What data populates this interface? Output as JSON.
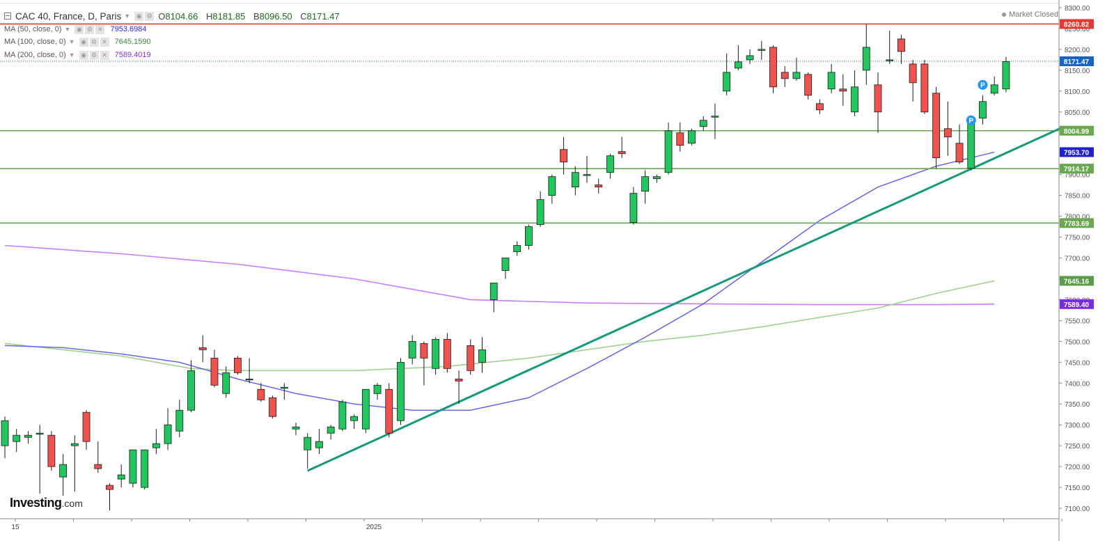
{
  "header": {
    "symbol_title": "CAC 40, France, D, Paris",
    "ohlc": [
      {
        "label": "O",
        "value": "8104.66"
      },
      {
        "label": "H",
        "value": "8181.85"
      },
      {
        "label": "B",
        "value": "8096.50"
      },
      {
        "label": "C",
        "value": "8171.47"
      }
    ],
    "market_status": "Market Closed"
  },
  "indicators": [
    {
      "label": "MA (50, close, 0)",
      "value": "7953.6984",
      "color": "#2b2bd8"
    },
    {
      "label": "MA (100, close, 0)",
      "value": "7645.1590",
      "color": "#3d8b3d"
    },
    {
      "label": "MA (200, close, 0)",
      "value": "7589.4019",
      "color": "#8a2be2"
    }
  ],
  "logo": {
    "main": "Investing",
    "suffix": ".com"
  },
  "colors": {
    "up": "#22c55e",
    "down": "#ef5350",
    "ma50": "#5b5bea",
    "ma100": "#9fd08f",
    "ma200": "#c77dff",
    "trend": "#129a7b",
    "support": "#6aa84f",
    "resistance": "#e53935",
    "last": "#1565c0"
  },
  "chart_data": {
    "type": "candlestick",
    "x_ticks": [
      "15",
      "2025"
    ],
    "y_axis": {
      "ticks": [
        7100,
        7150,
        7200,
        7250,
        7300,
        7350,
        7400,
        7450,
        7500,
        7550,
        7600,
        7650,
        7700,
        7750,
        7800,
        7850,
        7900,
        7950,
        8000,
        8050,
        8100,
        8150,
        8200,
        8250,
        8300
      ],
      "range": [
        7075,
        8310
      ]
    },
    "price_labels": [
      {
        "value": 8260.82,
        "text": "8260.82",
        "kind": "resistance"
      },
      {
        "value": 8171.47,
        "text": "8171.47",
        "kind": "last"
      },
      {
        "value": 8004.99,
        "text": "8004.99",
        "kind": "support"
      },
      {
        "value": 7953.7,
        "text": "7953.70",
        "kind": "ma50"
      },
      {
        "value": 7914.17,
        "text": "7914.17",
        "kind": "support"
      },
      {
        "value": 7783.69,
        "text": "7783.69",
        "kind": "support"
      },
      {
        "value": 7645.16,
        "text": "7645.16",
        "kind": "ma100"
      },
      {
        "value": 7589.4,
        "text": "7589.40",
        "kind": "ma200"
      }
    ],
    "horizontal_lines": [
      {
        "value": 8260.82,
        "kind": "resistance"
      },
      {
        "value": 8004.99,
        "kind": "support"
      },
      {
        "value": 7914.17,
        "kind": "support"
      },
      {
        "value": 7783.69,
        "kind": "support"
      }
    ],
    "trendline": [
      {
        "bar": 26,
        "value": 7190
      },
      {
        "bar": 91,
        "value": 8015
      }
    ],
    "p_markers": [
      {
        "bar": 83,
        "value": 8030
      },
      {
        "bar": 84,
        "value": 8115
      }
    ],
    "candles": [
      {
        "o": 7250,
        "h": 7320,
        "l": 7220,
        "c": 7310
      },
      {
        "o": 7260,
        "h": 7290,
        "l": 7235,
        "c": 7275
      },
      {
        "o": 7270,
        "h": 7285,
        "l": 7255,
        "c": 7275
      },
      {
        "o": 7280,
        "h": 7300,
        "l": 7135,
        "c": 7280
      },
      {
        "o": 7275,
        "h": 7285,
        "l": 7190,
        "c": 7200
      },
      {
        "o": 7175,
        "h": 7230,
        "l": 7130,
        "c": 7205
      },
      {
        "o": 7250,
        "h": 7275,
        "l": 7140,
        "c": 7255
      },
      {
        "o": 7330,
        "h": 7335,
        "l": 7240,
        "c": 7260
      },
      {
        "o": 7205,
        "h": 7260,
        "l": 7185,
        "c": 7195
      },
      {
        "o": 7155,
        "h": 7160,
        "l": 7095,
        "c": 7145
      },
      {
        "o": 7170,
        "h": 7205,
        "l": 7150,
        "c": 7180
      },
      {
        "o": 7160,
        "h": 7240,
        "l": 7150,
        "c": 7240
      },
      {
        "o": 7150,
        "h": 7240,
        "l": 7145,
        "c": 7240
      },
      {
        "o": 7245,
        "h": 7290,
        "l": 7230,
        "c": 7255
      },
      {
        "o": 7255,
        "h": 7340,
        "l": 7240,
        "c": 7300
      },
      {
        "o": 7285,
        "h": 7360,
        "l": 7270,
        "c": 7335
      },
      {
        "o": 7335,
        "h": 7455,
        "l": 7330,
        "c": 7430
      },
      {
        "o": 7485,
        "h": 7515,
        "l": 7450,
        "c": 7480
      },
      {
        "o": 7460,
        "h": 7480,
        "l": 7390,
        "c": 7395
      },
      {
        "o": 7375,
        "h": 7440,
        "l": 7365,
        "c": 7425
      },
      {
        "o": 7460,
        "h": 7465,
        "l": 7420,
        "c": 7425
      },
      {
        "o": 7410,
        "h": 7460,
        "l": 7400,
        "c": 7410
      },
      {
        "o": 7385,
        "h": 7400,
        "l": 7355,
        "c": 7360
      },
      {
        "o": 7365,
        "h": 7370,
        "l": 7315,
        "c": 7320
      },
      {
        "o": 7390,
        "h": 7400,
        "l": 7360,
        "c": 7390
      },
      {
        "o": 7290,
        "h": 7305,
        "l": 7275,
        "c": 7295
      },
      {
        "o": 7240,
        "h": 7280,
        "l": 7195,
        "c": 7270
      },
      {
        "o": 7245,
        "h": 7290,
        "l": 7230,
        "c": 7260
      },
      {
        "o": 7280,
        "h": 7300,
        "l": 7265,
        "c": 7295
      },
      {
        "o": 7290,
        "h": 7360,
        "l": 7285,
        "c": 7355
      },
      {
        "o": 7310,
        "h": 7325,
        "l": 7290,
        "c": 7320
      },
      {
        "o": 7290,
        "h": 7385,
        "l": 7280,
        "c": 7385
      },
      {
        "o": 7375,
        "h": 7400,
        "l": 7360,
        "c": 7395
      },
      {
        "o": 7385,
        "h": 7400,
        "l": 7270,
        "c": 7280
      },
      {
        "o": 7310,
        "h": 7460,
        "l": 7300,
        "c": 7450
      },
      {
        "o": 7460,
        "h": 7515,
        "l": 7445,
        "c": 7500
      },
      {
        "o": 7495,
        "h": 7500,
        "l": 7395,
        "c": 7460
      },
      {
        "o": 7435,
        "h": 7510,
        "l": 7420,
        "c": 7505
      },
      {
        "o": 7505,
        "h": 7520,
        "l": 7425,
        "c": 7435
      },
      {
        "o": 7410,
        "h": 7430,
        "l": 7350,
        "c": 7405
      },
      {
        "o": 7490,
        "h": 7505,
        "l": 7420,
        "c": 7430
      },
      {
        "o": 7450,
        "h": 7510,
        "l": 7425,
        "c": 7480
      },
      {
        "o": 7600,
        "h": 7640,
        "l": 7570,
        "c": 7640
      },
      {
        "o": 7670,
        "h": 7700,
        "l": 7650,
        "c": 7700
      },
      {
        "o": 7715,
        "h": 7740,
        "l": 7705,
        "c": 7730
      },
      {
        "o": 7730,
        "h": 7780,
        "l": 7720,
        "c": 7775
      },
      {
        "o": 7780,
        "h": 7860,
        "l": 7775,
        "c": 7840
      },
      {
        "o": 7850,
        "h": 7900,
        "l": 7830,
        "c": 7895
      },
      {
        "o": 7960,
        "h": 7990,
        "l": 7900,
        "c": 7930
      },
      {
        "o": 7870,
        "h": 7920,
        "l": 7850,
        "c": 7905
      },
      {
        "o": 7900,
        "h": 7945,
        "l": 7880,
        "c": 7900
      },
      {
        "o": 7875,
        "h": 7890,
        "l": 7855,
        "c": 7870
      },
      {
        "o": 7905,
        "h": 7950,
        "l": 7890,
        "c": 7945
      },
      {
        "o": 7955,
        "h": 7990,
        "l": 7940,
        "c": 7950
      },
      {
        "o": 7785,
        "h": 7870,
        "l": 7780,
        "c": 7855
      },
      {
        "o": 7860,
        "h": 7910,
        "l": 7830,
        "c": 7895
      },
      {
        "o": 7890,
        "h": 7900,
        "l": 7880,
        "c": 7895
      },
      {
        "o": 7905,
        "h": 8025,
        "l": 7900,
        "c": 8005
      },
      {
        "o": 8000,
        "h": 8025,
        "l": 7955,
        "c": 7970
      },
      {
        "o": 7975,
        "h": 8010,
        "l": 7970,
        "c": 8005
      },
      {
        "o": 8015,
        "h": 8040,
        "l": 8005,
        "c": 8030
      },
      {
        "o": 8040,
        "h": 8070,
        "l": 7985,
        "c": 8040
      },
      {
        "o": 8100,
        "h": 8190,
        "l": 8090,
        "c": 8145
      },
      {
        "o": 8155,
        "h": 8210,
        "l": 8150,
        "c": 8170
      },
      {
        "o": 8175,
        "h": 8200,
        "l": 8165,
        "c": 8185
      },
      {
        "o": 8200,
        "h": 8220,
        "l": 8175,
        "c": 8200
      },
      {
        "o": 8205,
        "h": 8210,
        "l": 8095,
        "c": 8110
      },
      {
        "o": 8145,
        "h": 8160,
        "l": 8110,
        "c": 8130
      },
      {
        "o": 8130,
        "h": 8180,
        "l": 8125,
        "c": 8145
      },
      {
        "o": 8140,
        "h": 8145,
        "l": 8080,
        "c": 8090
      },
      {
        "o": 8070,
        "h": 8080,
        "l": 8045,
        "c": 8055
      },
      {
        "o": 8105,
        "h": 8165,
        "l": 8095,
        "c": 8145
      },
      {
        "o": 8105,
        "h": 8140,
        "l": 8065,
        "c": 8100
      },
      {
        "o": 8050,
        "h": 8150,
        "l": 8040,
        "c": 8110
      },
      {
        "o": 8150,
        "h": 8260,
        "l": 8115,
        "c": 8205
      },
      {
        "o": 8115,
        "h": 8145,
        "l": 8000,
        "c": 8050
      },
      {
        "o": 8175,
        "h": 8245,
        "l": 8165,
        "c": 8175
      },
      {
        "o": 8225,
        "h": 8235,
        "l": 8165,
        "c": 8195
      },
      {
        "o": 8165,
        "h": 8175,
        "l": 8075,
        "c": 8120
      },
      {
        "o": 8165,
        "h": 8175,
        "l": 8045,
        "c": 8050
      },
      {
        "o": 8095,
        "h": 8110,
        "l": 7915,
        "c": 7940
      },
      {
        "o": 8010,
        "h": 8075,
        "l": 7945,
        "c": 7990
      },
      {
        "o": 7975,
        "h": 8020,
        "l": 7925,
        "c": 7930
      },
      {
        "o": 7915,
        "h": 8030,
        "l": 7910,
        "c": 8030
      },
      {
        "o": 8035,
        "h": 8090,
        "l": 8020,
        "c": 8075
      },
      {
        "o": 8095,
        "h": 8135,
        "l": 8090,
        "c": 8115
      },
      {
        "o": 8105,
        "h": 8182,
        "l": 8097,
        "c": 8171
      }
    ],
    "ma50": [
      [
        0,
        7490
      ],
      [
        5,
        7485
      ],
      [
        10,
        7470
      ],
      [
        15,
        7450
      ],
      [
        20,
        7410
      ],
      [
        25,
        7375
      ],
      [
        30,
        7350
      ],
      [
        35,
        7335
      ],
      [
        40,
        7335
      ],
      [
        45,
        7365
      ],
      [
        50,
        7435
      ],
      [
        55,
        7510
      ],
      [
        60,
        7590
      ],
      [
        65,
        7690
      ],
      [
        70,
        7790
      ],
      [
        75,
        7870
      ],
      [
        80,
        7920
      ],
      [
        85,
        7953.7
      ]
    ],
    "ma100": [
      [
        0,
        7495
      ],
      [
        10,
        7465
      ],
      [
        16,
        7435
      ],
      [
        20,
        7430
      ],
      [
        30,
        7430
      ],
      [
        38,
        7440
      ],
      [
        45,
        7460
      ],
      [
        55,
        7500
      ],
      [
        60,
        7515
      ],
      [
        65,
        7535
      ],
      [
        75,
        7580
      ],
      [
        80,
        7615
      ],
      [
        85,
        7645.2
      ]
    ],
    "ma200": [
      [
        0,
        7730
      ],
      [
        10,
        7710
      ],
      [
        20,
        7685
      ],
      [
        30,
        7650
      ],
      [
        40,
        7600
      ],
      [
        50,
        7592
      ],
      [
        60,
        7590
      ],
      [
        70,
        7588
      ],
      [
        80,
        7588
      ],
      [
        85,
        7589.4
      ]
    ]
  }
}
